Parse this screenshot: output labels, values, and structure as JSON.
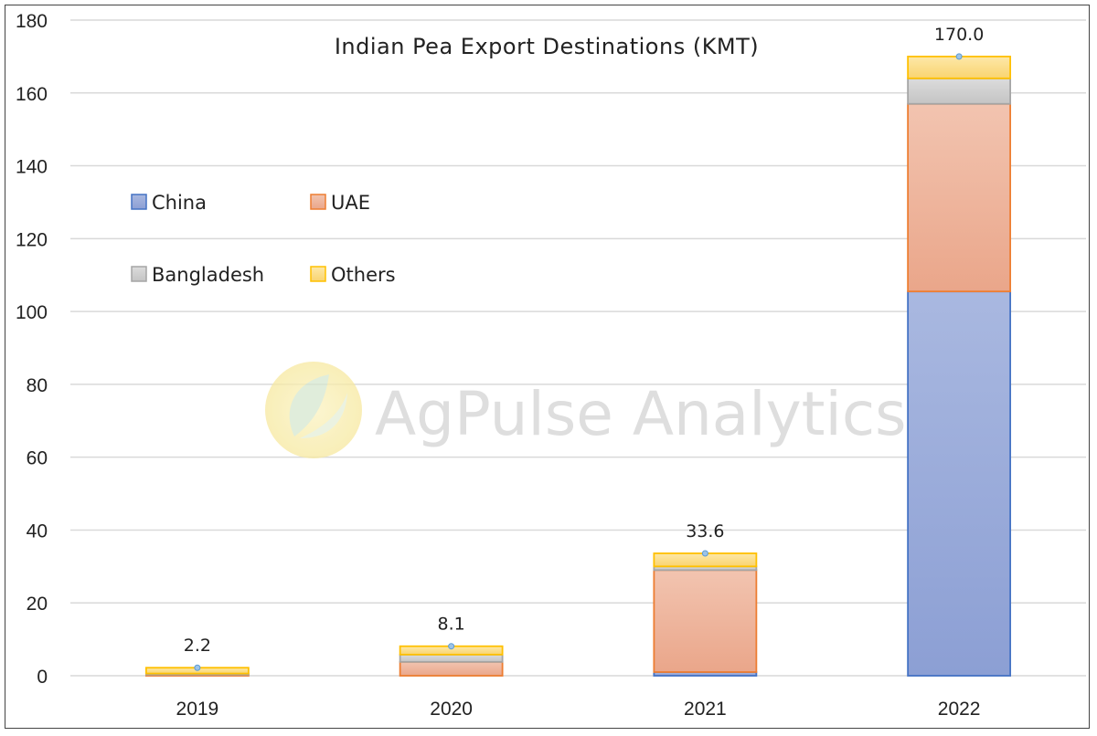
{
  "chart_data": {
    "type": "bar",
    "stacked": true,
    "title": "Indian Pea Export Destinations (KMT)",
    "categories": [
      "2019",
      "2020",
      "2021",
      "2022"
    ],
    "series": [
      {
        "name": "China",
        "values": [
          0.0,
          0.0,
          1.0,
          105.5
        ],
        "color": "#8fa3d6",
        "stroke": "#4472c4"
      },
      {
        "name": "UAE",
        "values": [
          0.3,
          3.8,
          28.0,
          51.5
        ],
        "color": "#eeb39a",
        "stroke": "#ed7d31"
      },
      {
        "name": "Bangladesh",
        "values": [
          0.3,
          2.0,
          1.0,
          7.0
        ],
        "color": "#cfcfcf",
        "stroke": "#a5a5a5"
      },
      {
        "name": "Others",
        "values": [
          1.6,
          2.3,
          3.6,
          6.0
        ],
        "color": "#fbdf8c",
        "stroke": "#ffc000"
      }
    ],
    "totals": [
      "2.2",
      "8.1",
      "33.6",
      "170.0"
    ],
    "ylim": [
      0,
      180
    ],
    "yticks": [
      0,
      20,
      40,
      60,
      80,
      100,
      120,
      140,
      160,
      180
    ],
    "grid": true,
    "legend_position": "upper-left",
    "watermark": "AgPulse Analytics"
  }
}
